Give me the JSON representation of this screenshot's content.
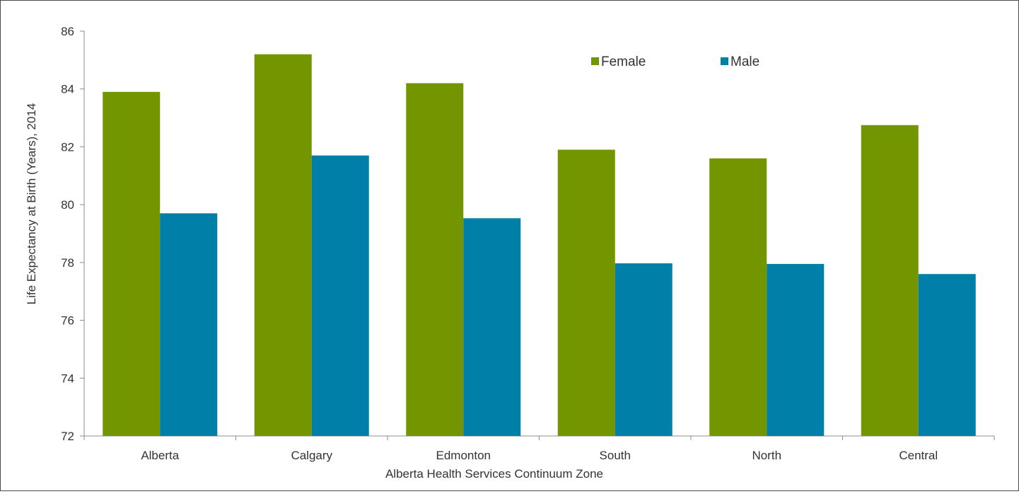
{
  "chart_data": {
    "type": "bar",
    "title": "",
    "xlabel": "Alberta Health Services Continuum Zone",
    "ylabel": "Life Expectancy at Birth (Years), 2014",
    "categories": [
      "Alberta",
      "Calgary",
      "Edmonton",
      "South",
      "North",
      "Central"
    ],
    "series": [
      {
        "name": "Female",
        "color": "#739500",
        "values": [
          83.9,
          85.2,
          84.2,
          81.9,
          81.6,
          82.75
        ]
      },
      {
        "name": "Male",
        "color": "#007fa8",
        "values": [
          79.7,
          81.7,
          79.53,
          77.97,
          77.95,
          77.6
        ]
      }
    ],
    "ylim": [
      72,
      86
    ],
    "yticks": [
      "72",
      "74",
      "76",
      "78",
      "80",
      "82",
      "84",
      "86"
    ],
    "grid": false,
    "legend_position": "top-right"
  }
}
